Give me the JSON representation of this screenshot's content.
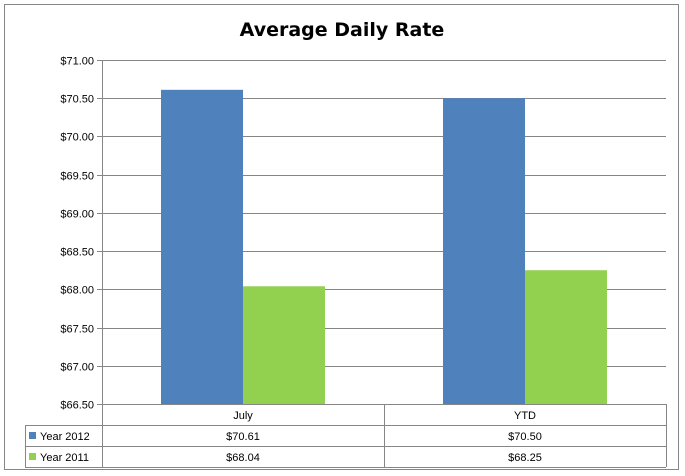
{
  "chart_data": {
    "type": "bar",
    "title": "Average Daily Rate",
    "categories": [
      "July",
      "YTD"
    ],
    "series": [
      {
        "name": "Year 2012",
        "values": [
          70.61,
          70.5
        ],
        "labels": [
          "$70.61",
          "$70.50"
        ],
        "color": "#4F81BD"
      },
      {
        "name": "Year 2011",
        "values": [
          68.04,
          68.25
        ],
        "labels": [
          "$68.04",
          "$68.25"
        ],
        "color": "#92D050"
      }
    ],
    "ylim": [
      66.5,
      71.0
    ],
    "yticks": [
      66.5,
      67.0,
      67.5,
      68.0,
      68.5,
      69.0,
      69.5,
      70.0,
      70.5,
      71.0
    ],
    "ytick_labels": [
      "$66.50",
      "$67.00",
      "$67.50",
      "$68.00",
      "$68.50",
      "$69.00",
      "$69.50",
      "$70.00",
      "$70.50",
      "$71.00"
    ],
    "grid": true,
    "legend": "data-table",
    "gridline_color": "#868686"
  }
}
